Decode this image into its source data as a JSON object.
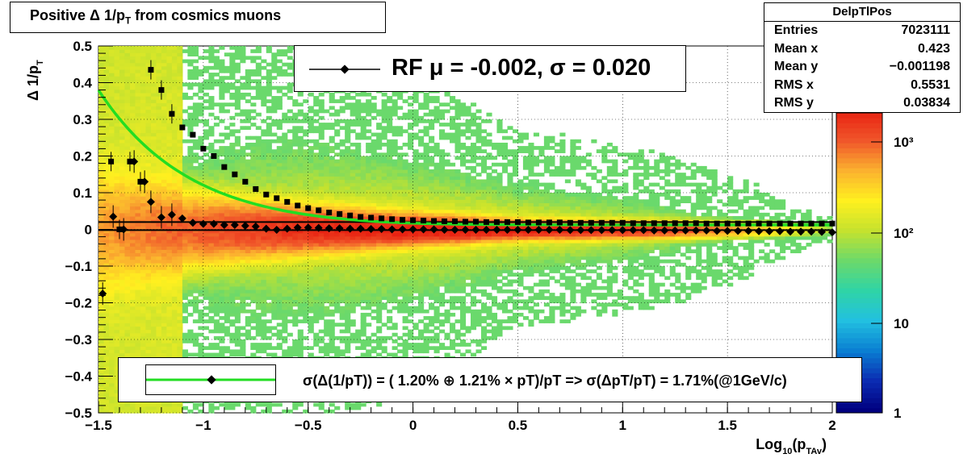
{
  "title": {
    "text": "Positive Δ 1/p",
    "sub": "T",
    "suffix": " from cosmics muons"
  },
  "stats": {
    "name": "DelpTlPos",
    "rows": [
      {
        "label": "Entries",
        "value": "7023111"
      },
      {
        "label": "Mean x",
        "value": "0.423"
      },
      {
        "label": "Mean y",
        "value": "−0.001198"
      },
      {
        "label": "RMS x",
        "value": "0.5531"
      },
      {
        "label": "RMS y",
        "value": "0.03834"
      }
    ]
  },
  "legend_top": {
    "text": "RF μ = -0.002, σ =   0.020"
  },
  "legend_bottom": {
    "text": "σ(Δ(1/pT)) = ( 1.20% ⊕  1.21% × pT)/pT => σ(ΔpT/pT) =  1.71%(@1GeV/c)"
  },
  "colors": {
    "fit_curve": "#22dd22",
    "markers": "#000000",
    "palette": [
      "#00007f",
      "#0b2cb2",
      "#0a7fd2",
      "#22c0e0",
      "#2fd4a6",
      "#6cd96a",
      "#c5e22e",
      "#fff01f",
      "#fbb12f",
      "#f0562a",
      "#e82212"
    ]
  },
  "chart_data": {
    "type": "heatmap",
    "xlim": [
      -1.5,
      2
    ],
    "ylim": [
      -0.5,
      0.5
    ],
    "x_ticks": [
      "−1.5",
      "−1",
      "−0.5",
      "0",
      "0.5",
      "1",
      "1.5",
      "2"
    ],
    "y_ticks": [
      "−0.5",
      "−0.4",
      "−0.3",
      "−0.2",
      "−0.1",
      "0",
      "0.1",
      "0.2",
      "0.3",
      "0.4",
      "0.5"
    ],
    "z_scale": "log",
    "z_ticks": [
      "1",
      "10",
      "10²",
      "10³"
    ],
    "x_label": "Log₁₀(p_TAv)",
    "y_label": "Δ 1/p_T",
    "grid": true,
    "sigma_points": {
      "x": [
        -1.44,
        -1.4,
        -1.35,
        -1.3,
        -1.25,
        -1.2,
        -1.15,
        -1.1,
        -1.05,
        -1.0,
        -0.95,
        -0.9,
        -0.85,
        -0.8,
        -0.75,
        -0.7,
        -0.65,
        -0.6,
        -0.55,
        -0.5,
        -0.45,
        -0.4,
        -0.35,
        -0.3,
        -0.25,
        -0.2,
        -0.15,
        -0.1,
        -0.05,
        0.0,
        0.05,
        0.1,
        0.15,
        0.2,
        0.25,
        0.3,
        0.35,
        0.4,
        0.45,
        0.5,
        0.55,
        0.6,
        0.65,
        0.7,
        0.75,
        0.8,
        0.85,
        0.9,
        0.95,
        1.0,
        1.05,
        1.1,
        1.15,
        1.2,
        1.25,
        1.3,
        1.35,
        1.4,
        1.45,
        1.5,
        1.55,
        1.6,
        1.65,
        1.7,
        1.75,
        1.8,
        1.85,
        1.9,
        1.95,
        2.0
      ],
      "y": [
        0.185,
        0.0,
        0.185,
        0.13,
        0.435,
        0.38,
        0.315,
        0.278,
        0.258,
        0.22,
        0.2,
        0.17,
        0.15,
        0.13,
        0.11,
        0.095,
        0.085,
        0.075,
        0.065,
        0.058,
        0.052,
        0.046,
        0.042,
        0.038,
        0.034,
        0.032,
        0.03,
        0.028,
        0.026,
        0.025,
        0.024,
        0.023,
        0.022,
        0.022,
        0.021,
        0.021,
        0.02,
        0.02,
        0.02,
        0.02,
        0.019,
        0.019,
        0.019,
        0.019,
        0.018,
        0.018,
        0.018,
        0.018,
        0.018,
        0.018,
        0.017,
        0.017,
        0.017,
        0.017,
        0.017,
        0.017,
        0.017,
        0.016,
        0.016,
        0.016,
        0.016,
        0.016,
        0.016,
        0.016,
        0.016,
        0.016,
        0.016,
        0.016,
        0.016,
        0.016
      ]
    },
    "mean_points": {
      "x": [
        -1.48,
        -1.43,
        -1.38,
        -1.33,
        -1.28,
        -1.25,
        -1.2,
        -1.15,
        -1.1,
        -1.05,
        -1.0,
        -0.95,
        -0.9,
        -0.85,
        -0.8,
        -0.75,
        -0.7,
        -0.65,
        -0.6,
        -0.55,
        -0.5,
        -0.45,
        -0.4,
        -0.35,
        -0.3,
        -0.25,
        -0.2,
        -0.15,
        -0.1,
        -0.05,
        0.0,
        0.05,
        0.1,
        0.15,
        0.2,
        0.25,
        0.3,
        0.35,
        0.4,
        0.45,
        0.5,
        0.55,
        0.6,
        0.65,
        0.7,
        0.75,
        0.8,
        0.85,
        0.9,
        0.95,
        1.0,
        1.05,
        1.1,
        1.15,
        1.2,
        1.25,
        1.3,
        1.35,
        1.4,
        1.45,
        1.5,
        1.55,
        1.6,
        1.65,
        1.7,
        1.75,
        1.8,
        1.85,
        1.9,
        1.95,
        2.0
      ],
      "y": [
        -0.175,
        0.035,
        0.0,
        0.185,
        0.13,
        0.075,
        0.033,
        0.04,
        0.03,
        0.018,
        0.015,
        0.015,
        0.012,
        0.012,
        0.01,
        0.008,
        0.002,
        -0.001,
        0.002,
        0.005,
        0.005,
        0.004,
        0.003,
        0.003,
        0.002,
        0.002,
        0.001,
        0.001,
        0.0,
        0.0,
        0.0,
        0.0,
        0.0,
        -0.001,
        -0.001,
        -0.001,
        -0.001,
        -0.001,
        -0.001,
        -0.001,
        -0.001,
        -0.001,
        -0.001,
        -0.001,
        -0.001,
        -0.002,
        -0.002,
        -0.002,
        -0.002,
        -0.002,
        -0.002,
        -0.002,
        -0.002,
        -0.003,
        -0.003,
        -0.003,
        -0.003,
        -0.003,
        -0.003,
        -0.004,
        -0.004,
        -0.004,
        -0.004,
        -0.005,
        -0.005,
        -0.005,
        -0.006,
        -0.006,
        -0.006,
        -0.007,
        -0.008
      ]
    },
    "reference_lines": {
      "sigma_level": 0.02,
      "mean_level": -0.002
    },
    "fit": {
      "a_percent": 1.2,
      "b_percent": 1.21,
      "sigma_at_1GeV_percent": 1.71
    }
  }
}
